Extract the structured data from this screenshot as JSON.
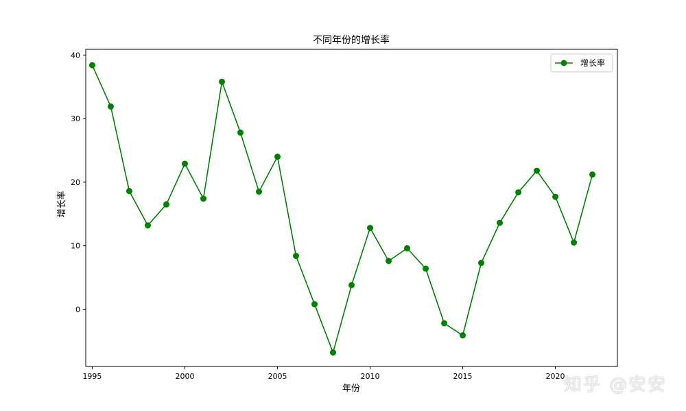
{
  "chart_data": {
    "type": "line",
    "title": "不同年份的增长率",
    "xlabel": "年份",
    "ylabel": "增长率",
    "x": [
      1995,
      1996,
      1997,
      1998,
      1999,
      2000,
      2001,
      2002,
      2003,
      2004,
      2005,
      2006,
      2007,
      2008,
      2009,
      2010,
      2011,
      2012,
      2013,
      2014,
      2015,
      2016,
      2017,
      2018,
      2019,
      2020,
      2021,
      2022
    ],
    "series": [
      {
        "name": "增长率",
        "color": "#008000",
        "marker": "circle",
        "values": [
          38.4,
          31.9,
          18.6,
          13.2,
          16.5,
          22.9,
          17.4,
          35.8,
          27.8,
          18.5,
          24.0,
          8.4,
          0.8,
          -6.8,
          3.8,
          12.8,
          7.6,
          9.6,
          6.4,
          -2.2,
          -4.1,
          7.3,
          13.6,
          18.4,
          21.8,
          17.7,
          10.5,
          21.2
        ]
      }
    ],
    "xticks": [
      1995,
      2000,
      2005,
      2010,
      2015,
      2020
    ],
    "yticks": [
      0,
      10,
      20,
      30,
      40
    ],
    "xlim": [
      1994.65,
      2023.35
    ],
    "ylim": [
      -9.0,
      40.9
    ],
    "grid": false,
    "legend_position": "top-right"
  },
  "watermark": "知乎 @安安"
}
